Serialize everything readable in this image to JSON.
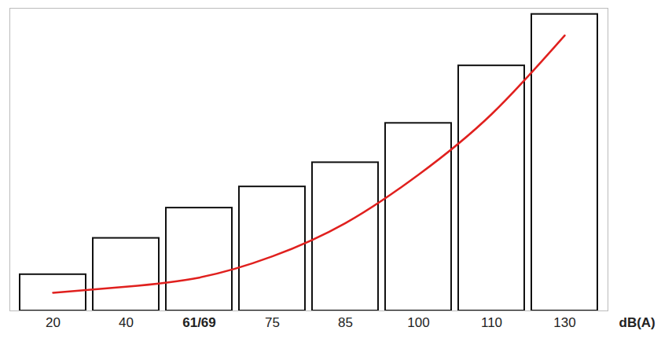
{
  "chart_data": {
    "type": "bar",
    "x_label": "dB(A)",
    "categories": [
      "20",
      "40",
      "61/69",
      "75",
      "85",
      "100",
      "110",
      "130"
    ],
    "series": [
      {
        "type": "bar",
        "color": "#ffffff",
        "values": [
          12,
          24,
          34,
          41,
          49,
          62,
          81,
          98
        ]
      },
      {
        "type": "line",
        "color": "#e0201e",
        "values": [
          6,
          8,
          11,
          18,
          29,
          45,
          65,
          91
        ]
      }
    ],
    "ylim": [
      0,
      100
    ],
    "grid": false,
    "tick_labels": "x"
  }
}
